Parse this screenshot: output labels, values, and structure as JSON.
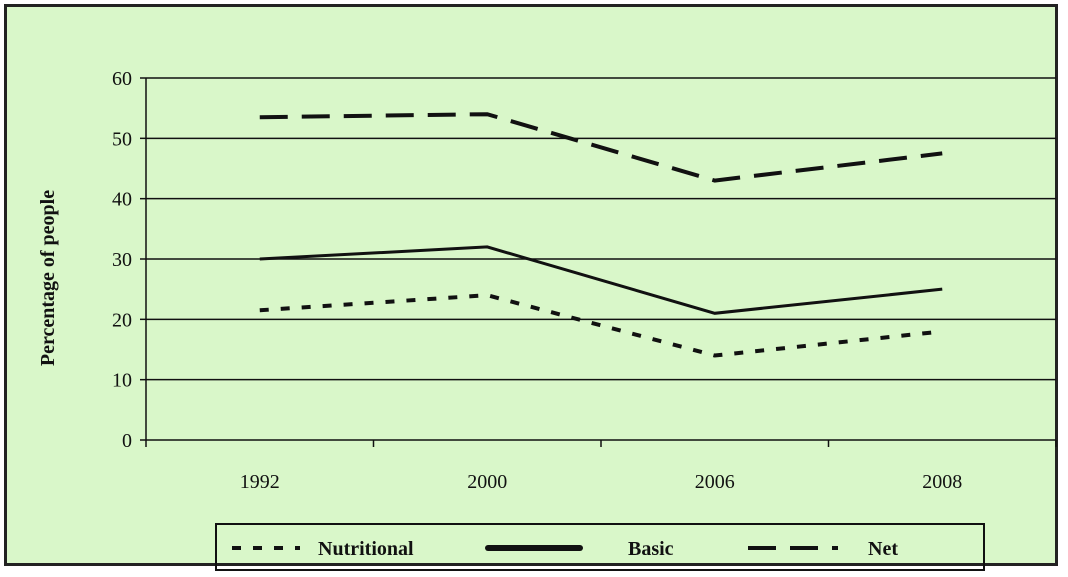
{
  "chart_data": {
    "type": "line",
    "categories": [
      "1992",
      "2000",
      "2006",
      "2008"
    ],
    "series": [
      {
        "name": "Nutritional",
        "values": [
          21.5,
          24,
          14,
          18
        ],
        "dash": "dotted"
      },
      {
        "name": "Basic",
        "values": [
          30,
          32,
          21,
          25
        ],
        "dash": "solid"
      },
      {
        "name": "Net",
        "values": [
          53.5,
          54,
          43,
          47.5
        ],
        "dash": "dashed"
      }
    ],
    "xlabel": "",
    "ylabel": "Percentage of people",
    "ylim": [
      0,
      60
    ],
    "yticks": [
      0,
      10,
      20,
      30,
      40,
      50,
      60
    ],
    "grid": true,
    "legend_placement": "bottom",
    "background_color": "#d9f7c9",
    "line_color": "#111111"
  }
}
